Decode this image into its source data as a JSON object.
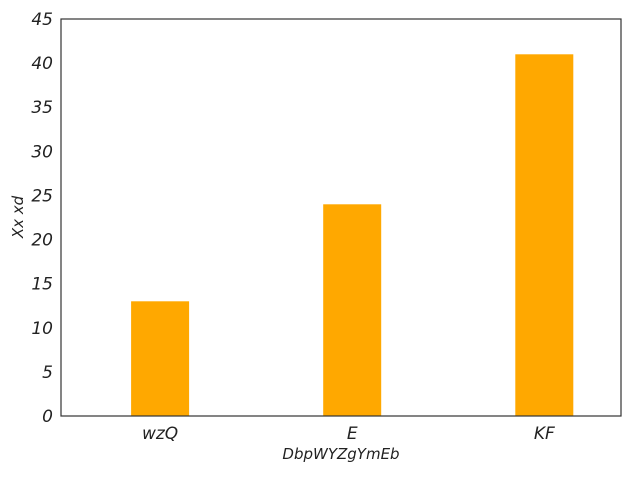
{
  "chart_data": {
    "type": "bar",
    "categories": [
      "wzQ",
      "E",
      "KF"
    ],
    "values": [
      13,
      24,
      41
    ],
    "xlabel": "DbpWYZgYmEb",
    "ylabel": "Xx xd",
    "ylim": [
      0,
      45
    ],
    "yticks": [
      0,
      5,
      10,
      15,
      20,
      25,
      30,
      35,
      40,
      45
    ],
    "bar_color": "#FFA800",
    "grid": false
  }
}
